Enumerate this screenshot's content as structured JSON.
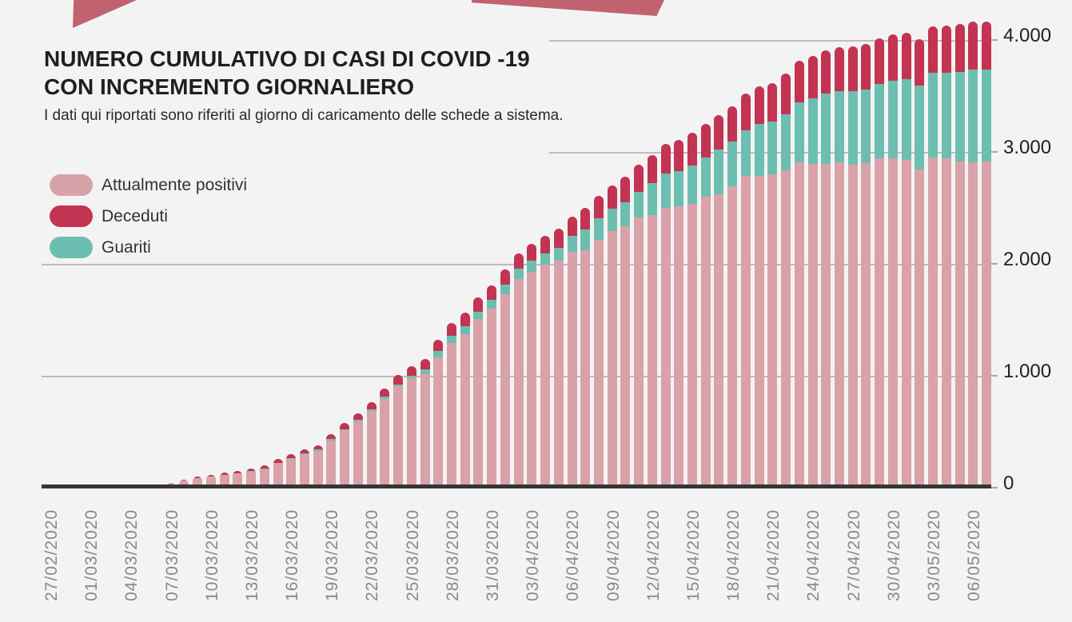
{
  "header": {
    "title_line1": "NUMERO CUMULATIVO DI CASI DI COVID -19",
    "title_line2": "CON INCREMENTO GIORNALIERO",
    "subtitle": "I dati qui riportati sono riferiti al giorno di caricamento delle schede a sistema."
  },
  "legend": {
    "items": [
      {
        "label": "Attualmente positivi",
        "color": "#d9a2a8"
      },
      {
        "label": "Deceduti",
        "color": "#c23452"
      },
      {
        "label": "Guariti",
        "color": "#6cbfb0"
      }
    ]
  },
  "chart_data": {
    "type": "bar",
    "stacked": true,
    "title": "Numero cumulativo di casi di COVID-19 con incremento giornaliero",
    "xlabel": "",
    "ylabel": "",
    "ylim": [
      0,
      4200
    ],
    "grid": "horizontal",
    "legend_position": "upper-left",
    "stack_order_bottom_to_top": [
      "Attualmente positivi",
      "Guariti",
      "Deceduti"
    ],
    "y_ticks": [
      {
        "value": 4000,
        "label": "4.000"
      },
      {
        "value": 3000,
        "label": "3.000"
      },
      {
        "value": 2000,
        "label": "2.000"
      },
      {
        "value": 1000,
        "label": "1.000"
      },
      {
        "value": 0,
        "label": "0"
      }
    ],
    "x_tick_labels": [
      "27/02/2020",
      "01/03/2020",
      "04/03/2020",
      "07/03/2020",
      "10/03/2020",
      "13/03/2020",
      "16/03/2020",
      "19/03/2020",
      "22/03/2020",
      "25/03/2020",
      "28/03/2020",
      "31/03/2020",
      "03/04/2020",
      "06/04/2020",
      "09/04/2020",
      "12/04/2020",
      "15/04/2020",
      "18/04/2020",
      "21/04/2020",
      "24/04/2020",
      "27/04/2020",
      "30/04/2020",
      "03/05/2020",
      "06/05/2020"
    ],
    "categories": [
      "06/03/2020",
      "07/03/2020",
      "08/03/2020",
      "09/03/2020",
      "10/03/2020",
      "11/03/2020",
      "12/03/2020",
      "13/03/2020",
      "14/03/2020",
      "15/03/2020",
      "16/03/2020",
      "17/03/2020",
      "18/03/2020",
      "19/03/2020",
      "20/03/2020",
      "21/03/2020",
      "22/03/2020",
      "23/03/2020",
      "24/03/2020",
      "25/03/2020",
      "26/03/2020",
      "27/03/2020",
      "28/03/2020",
      "29/03/2020",
      "30/03/2020",
      "31/03/2020",
      "01/04/2020",
      "02/04/2020",
      "03/04/2020",
      "04/04/2020",
      "05/04/2020",
      "06/04/2020",
      "07/04/2020",
      "08/04/2020",
      "09/04/2020",
      "10/04/2020",
      "11/04/2020",
      "12/04/2020",
      "13/04/2020",
      "14/04/2020",
      "15/04/2020",
      "16/04/2020",
      "17/04/2020",
      "18/04/2020",
      "19/04/2020",
      "20/04/2020",
      "21/04/2020",
      "22/04/2020",
      "23/04/2020",
      "24/04/2020",
      "25/04/2020",
      "26/04/2020",
      "27/04/2020",
      "28/04/2020",
      "29/04/2020",
      "30/04/2020",
      "01/05/2020",
      "02/05/2020",
      "03/05/2020",
      "04/05/2020",
      "05/05/2020",
      "06/05/2020",
      "07/05/2020"
    ],
    "series": [
      {
        "name": "Attualmente positivi",
        "color": "#d9a2a8",
        "values": [
          5,
          40,
          62,
          85,
          98,
          112,
          128,
          142,
          165,
          218,
          260,
          302,
          332,
          424,
          513,
          591,
          683,
          795,
          906,
          978,
          1014,
          1164,
          1295,
          1375,
          1505,
          1600,
          1730,
          1862,
          1930,
          1990,
          2029,
          2107,
          2121,
          2215,
          2290,
          2338,
          2417,
          2434,
          2500,
          2512,
          2536,
          2600,
          2624,
          2690,
          2786,
          2786,
          2798,
          2838,
          2910,
          2893,
          2893,
          2905,
          2886,
          2900,
          2945,
          2941,
          2929,
          2840,
          2949,
          2943,
          2914,
          2907,
          2912
        ]
      },
      {
        "name": "Guariti",
        "color": "#6cbfb0",
        "values": [
          25,
          3,
          3,
          3,
          3,
          4,
          4,
          5,
          5,
          6,
          6,
          7,
          8,
          9,
          11,
          13,
          15,
          17,
          19,
          21,
          40,
          55,
          62,
          68,
          70,
          78,
          85,
          92,
          100,
          105,
          114,
          143,
          185,
          195,
          200,
          215,
          226,
          285,
          309,
          315,
          345,
          350,
          400,
          405,
          410,
          464,
          470,
          500,
          535,
          583,
          630,
          636,
          655,
          660,
          662,
          697,
          722,
          750,
          755,
          762,
          802,
          827,
          824
        ]
      },
      {
        "name": "Deceduti",
        "color": "#c23452",
        "values": [
          0,
          2,
          4,
          13,
          15,
          18,
          21,
          24,
          27,
          31,
          34,
          37,
          41,
          46,
          53,
          59,
          66,
          73,
          81,
          89,
          98,
          105,
          112,
          118,
          124,
          128,
          134,
          142,
          150,
          155,
          171,
          174,
          192,
          200,
          207,
          225,
          240,
          252,
          262,
          280,
          290,
          298,
          308,
          315,
          325,
          335,
          345,
          360,
          368,
          378,
          385,
          392,
          400,
          405,
          408,
          412,
          415,
          417,
          419,
          422,
          425,
          427,
          430
        ]
      }
    ]
  }
}
